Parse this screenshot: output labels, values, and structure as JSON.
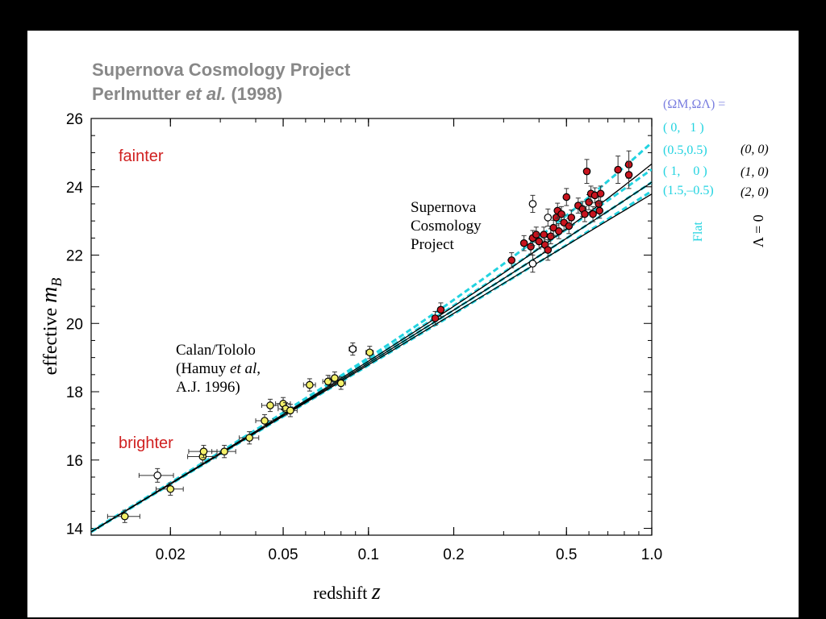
{
  "header": {
    "title_line1": "Supernova Cosmology Project",
    "title_line2_author": "Perlmutter",
    "title_line2_etal": "et al.",
    "title_line2_year": "(1998)"
  },
  "chart_data": {
    "type": "scatter",
    "xlabel_text": "redshift",
    "xlabel_var": "z",
    "ylabel_text": "effective",
    "ylabel_var": "m",
    "ylabel_sub": "B",
    "x_scale": "log",
    "xlim": [
      0.0105,
      1.0
    ],
    "ylim": [
      13.8,
      26
    ],
    "xticks": [
      0.02,
      0.05,
      0.1,
      0.2,
      0.5,
      1.0
    ],
    "xtick_labels": [
      "0.02",
      "0.05",
      "0.1",
      "0.2",
      "0.5",
      "1.0"
    ],
    "yticks": [
      14,
      16,
      18,
      20,
      22,
      24,
      26
    ],
    "ytick_labels": [
      "14",
      "16",
      "18",
      "20",
      "22",
      "24",
      "26"
    ],
    "annotations": {
      "fainter": "fainter",
      "brighter": "brighter",
      "calan_line1": "Calan/Tololo",
      "calan_line2a": "(Hamuy ",
      "calan_line2b": "et al",
      "calan_line2c": ",",
      "calan_line3": "A.J. 1996)",
      "scp_line1": "Supernova",
      "scp_line2": "Cosmology",
      "scp_line3": "Project"
    },
    "legend": {
      "header": "(Ω",
      "header_full": "(ΩM,ΩΛ) =",
      "flat_models": [
        "( 0,   1 )",
        "(0.5,0.5)",
        "( 1,    0 )",
        "(1.5,–0.5)"
      ],
      "lambda_zero_models": [
        "(0, 0)",
        "(1, 0)",
        "(2, 0)"
      ],
      "flat_label": "Flat",
      "lambda_label": "Λ = 0"
    },
    "colors": {
      "flat": "#22d3e0",
      "lambda_zero": "#000000",
      "low_z_points": "#f3f06a",
      "high_z_points": "#c8141e",
      "open_points": "#ffffff",
      "annotation_red": "#d02020",
      "legend_header": "#7b7fe0",
      "title_gray": "#888888"
    },
    "series": [
      {
        "marker": "filled-yellow",
        "points": [
          {
            "z": 0.0138,
            "m": 14.35,
            "xe": 0.0018,
            "ye": 0.18
          },
          {
            "z": 0.02,
            "m": 15.15,
            "xe": 0.0022,
            "ye": 0.18
          },
          {
            "z": 0.026,
            "m": 16.1,
            "xe": 0.003,
            "ye": 0.18
          },
          {
            "z": 0.0262,
            "m": 16.25,
            "xe": 0.003,
            "ye": 0.18
          },
          {
            "z": 0.031,
            "m": 16.25,
            "xe": 0.003,
            "ye": 0.18
          },
          {
            "z": 0.038,
            "m": 16.65,
            "xe": 0.003,
            "ye": 0.18
          },
          {
            "z": 0.043,
            "m": 17.15,
            "xe": 0.003,
            "ye": 0.18
          },
          {
            "z": 0.045,
            "m": 17.6,
            "xe": 0.003,
            "ye": 0.18
          },
          {
            "z": 0.05,
            "m": 17.65,
            "xe": 0.003,
            "ye": 0.18
          },
          {
            "z": 0.051,
            "m": 17.5,
            "xe": 0.003,
            "ye": 0.18
          },
          {
            "z": 0.053,
            "m": 17.45,
            "xe": 0.003,
            "ye": 0.18
          },
          {
            "z": 0.062,
            "m": 18.2,
            "xe": 0.003,
            "ye": 0.18
          },
          {
            "z": 0.072,
            "m": 18.3,
            "xe": 0.003,
            "ye": 0.18
          },
          {
            "z": 0.076,
            "m": 18.4,
            "xe": 0.003,
            "ye": 0.18
          },
          {
            "z": 0.08,
            "m": 18.25,
            "xe": 0.003,
            "ye": 0.18
          },
          {
            "z": 0.101,
            "m": 19.15,
            "xe": 0.003,
            "ye": 0.18
          }
        ]
      },
      {
        "marker": "open",
        "points": [
          {
            "z": 0.018,
            "m": 15.55,
            "xe": 0.0025,
            "ye": 0.2
          },
          {
            "z": 0.088,
            "m": 19.25,
            "xe": 0.0025,
            "ye": 0.18
          },
          {
            "z": 0.38,
            "m": 23.5,
            "xe": 0.0,
            "ye": 0.25
          },
          {
            "z": 0.38,
            "m": 21.75,
            "xe": 0.0,
            "ye": 0.25
          },
          {
            "z": 0.43,
            "m": 23.1,
            "xe": 0.0,
            "ye": 0.25
          }
        ]
      },
      {
        "marker": "filled-red",
        "points": [
          {
            "z": 0.172,
            "m": 20.15,
            "xe": 0,
            "ye": 0.2
          },
          {
            "z": 0.18,
            "m": 20.4,
            "xe": 0,
            "ye": 0.2
          },
          {
            "z": 0.32,
            "m": 21.85,
            "xe": 0,
            "ye": 0.22
          },
          {
            "z": 0.354,
            "m": 22.35,
            "xe": 0,
            "ye": 0.22
          },
          {
            "z": 0.374,
            "m": 22.25,
            "xe": 0,
            "ye": 0.22
          },
          {
            "z": 0.38,
            "m": 22.5,
            "xe": 0,
            "ye": 0.22
          },
          {
            "z": 0.391,
            "m": 22.6,
            "xe": 0,
            "ye": 0.22
          },
          {
            "z": 0.4,
            "m": 22.4,
            "xe": 0,
            "ye": 0.22
          },
          {
            "z": 0.416,
            "m": 22.6,
            "xe": 0,
            "ye": 0.22
          },
          {
            "z": 0.42,
            "m": 22.3,
            "xe": 0,
            "ye": 0.22
          },
          {
            "z": 0.43,
            "m": 22.15,
            "xe": 0,
            "ye": 0.3
          },
          {
            "z": 0.44,
            "m": 22.55,
            "xe": 0,
            "ye": 0.22
          },
          {
            "z": 0.45,
            "m": 22.8,
            "xe": 0,
            "ye": 0.22
          },
          {
            "z": 0.46,
            "m": 23.1,
            "xe": 0,
            "ye": 0.22
          },
          {
            "z": 0.465,
            "m": 23.3,
            "xe": 0,
            "ye": 0.22
          },
          {
            "z": 0.47,
            "m": 22.7,
            "xe": 0,
            "ye": 0.22
          },
          {
            "z": 0.48,
            "m": 23.2,
            "xe": 0,
            "ye": 0.22
          },
          {
            "z": 0.49,
            "m": 22.95,
            "xe": 0,
            "ye": 0.22
          },
          {
            "z": 0.5,
            "m": 23.7,
            "xe": 0,
            "ye": 0.25
          },
          {
            "z": 0.51,
            "m": 22.85,
            "xe": 0,
            "ye": 0.22
          },
          {
            "z": 0.52,
            "m": 23.1,
            "xe": 0,
            "ye": 0.22
          },
          {
            "z": 0.55,
            "m": 23.45,
            "xe": 0,
            "ye": 0.22
          },
          {
            "z": 0.57,
            "m": 23.35,
            "xe": 0,
            "ye": 0.22
          },
          {
            "z": 0.58,
            "m": 23.2,
            "xe": 0,
            "ye": 0.22
          },
          {
            "z": 0.59,
            "m": 24.45,
            "xe": 0,
            "ye": 0.35
          },
          {
            "z": 0.6,
            "m": 23.55,
            "xe": 0,
            "ye": 0.22
          },
          {
            "z": 0.61,
            "m": 23.8,
            "xe": 0,
            "ye": 0.22
          },
          {
            "z": 0.62,
            "m": 23.2,
            "xe": 0,
            "ye": 0.22
          },
          {
            "z": 0.63,
            "m": 23.75,
            "xe": 0,
            "ye": 0.22
          },
          {
            "z": 0.65,
            "m": 23.5,
            "xe": 0,
            "ye": 0.22
          },
          {
            "z": 0.654,
            "m": 23.3,
            "xe": 0,
            "ye": 0.22
          },
          {
            "z": 0.66,
            "m": 23.8,
            "xe": 0,
            "ye": 0.22
          },
          {
            "z": 0.76,
            "m": 24.5,
            "xe": 0,
            "ye": 0.4
          },
          {
            "z": 0.83,
            "m": 24.65,
            "xe": 0,
            "ye": 0.4
          },
          {
            "z": 0.83,
            "m": 24.35,
            "xe": 0,
            "ye": 0.4
          }
        ]
      }
    ],
    "model_curves": [
      {
        "family": "flat",
        "om": 0.0,
        "ol": 1.0
      },
      {
        "family": "flat",
        "om": 0.5,
        "ol": 0.5
      },
      {
        "family": "flat",
        "om": 1.0,
        "ol": 0.0
      },
      {
        "family": "flat",
        "om": 1.5,
        "ol": -0.5
      },
      {
        "family": "lambda_zero",
        "om": 0.0,
        "ol": 0.0
      },
      {
        "family": "lambda_zero",
        "om": 1.0,
        "ol": 0.0
      },
      {
        "family": "lambda_zero",
        "om": 2.0,
        "ol": 0.0
      }
    ],
    "model_M": 14.55,
    "model_c": 5
  }
}
